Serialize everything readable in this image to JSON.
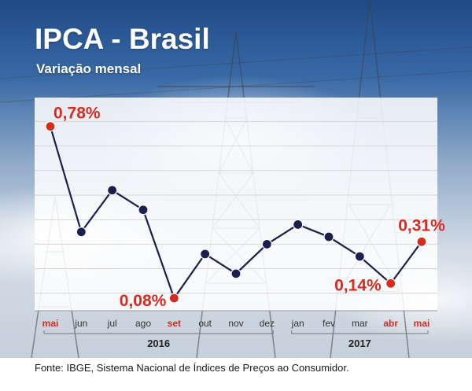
{
  "header": {
    "title": "IPCA - Brasil",
    "subtitle": "Variação mensal"
  },
  "footer": {
    "source": "Fonte: IBGE, Sistema Nacional de Índices de Preços ao Consumidor."
  },
  "colors": {
    "line": "#1b1f4e",
    "highlight": "#d62b1f",
    "month_label": "#333333",
    "highlight_label": "#d62b1f"
  },
  "chart_data": {
    "type": "line",
    "title": "IPCA - Brasil",
    "subtitle": "Variação mensal",
    "categories": [
      "mai",
      "jun",
      "jul",
      "ago",
      "set",
      "out",
      "nov",
      "dez",
      "jan",
      "fev",
      "mar",
      "abr",
      "mai"
    ],
    "years": [
      {
        "label": "2016",
        "from": 0,
        "to": 7
      },
      {
        "label": "2017",
        "from": 8,
        "to": 12
      }
    ],
    "series": [
      {
        "values": [
          0.78,
          0.35,
          0.52,
          0.44,
          0.08,
          0.26,
          0.18,
          0.3,
          0.38,
          0.33,
          0.25,
          0.14,
          0.31
        ]
      }
    ],
    "highlighted_indices": [
      0,
      4,
      11,
      12
    ],
    "data_labels": [
      {
        "index": 0,
        "text": "0,78%"
      },
      {
        "index": 4,
        "text": "0,08%"
      },
      {
        "index": 11,
        "text": "0,14%"
      },
      {
        "index": 12,
        "text": "0,31%"
      }
    ],
    "ylim": [
      0,
      0.9
    ],
    "grid": true,
    "legend": "none"
  }
}
